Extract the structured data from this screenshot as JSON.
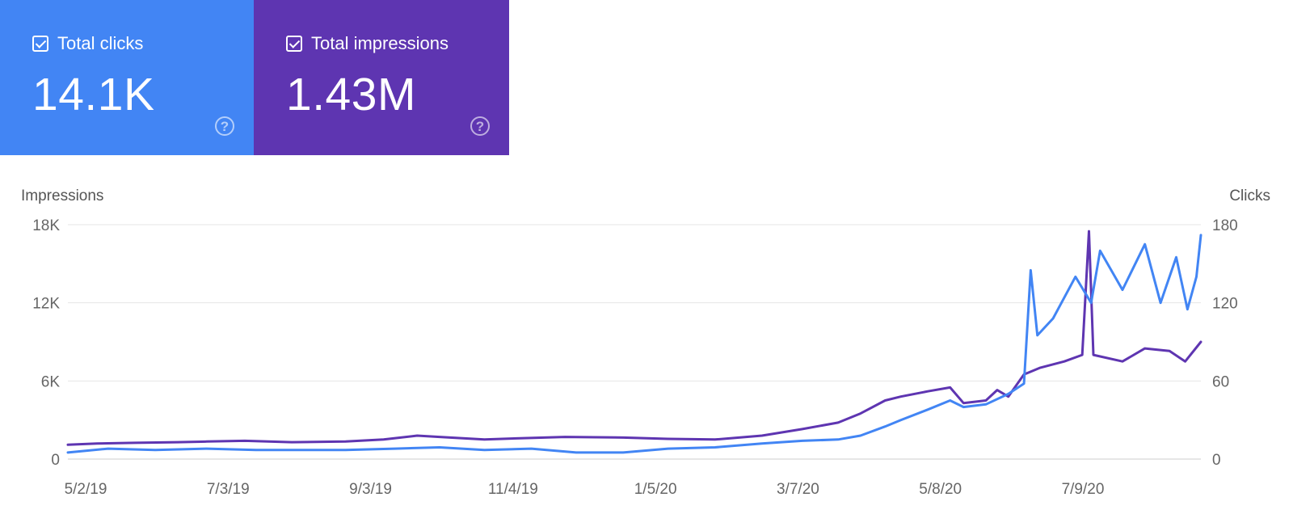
{
  "cards": [
    {
      "label": "Total clicks",
      "value": "14.1K",
      "color": "#4285F4",
      "checked": true,
      "help_icon": "help-circle-icon"
    },
    {
      "label": "Total impressions",
      "value": "1.43M",
      "color": "#5E35B1",
      "checked": true,
      "help_icon": "help-circle-icon"
    }
  ],
  "chart_data": {
    "type": "line",
    "left_axis": {
      "title": "Impressions",
      "ticks": [
        "0",
        "6K",
        "12K",
        "18K"
      ],
      "range": [
        0,
        18000
      ]
    },
    "right_axis": {
      "title": "Clicks",
      "ticks": [
        "0",
        "60",
        "120",
        "180"
      ],
      "range": [
        0,
        180
      ]
    },
    "x_ticks": [
      "5/2/19",
      "7/3/19",
      "9/3/19",
      "11/4/19",
      "1/5/20",
      "3/7/20",
      "5/8/20",
      "7/9/20"
    ],
    "x_range": [
      "2019-05-02",
      "2020-09-19"
    ],
    "grid": true,
    "legend": "none",
    "series": [
      {
        "name": "Total impressions",
        "axis": "left",
        "color": "#5E35B1",
        "points": [
          [
            "2019-05-02",
            1100
          ],
          [
            "2019-05-15",
            1200
          ],
          [
            "2019-06-01",
            1250
          ],
          [
            "2019-06-20",
            1300
          ],
          [
            "2019-07-03",
            1350
          ],
          [
            "2019-07-20",
            1400
          ],
          [
            "2019-08-10",
            1300
          ],
          [
            "2019-09-03",
            1350
          ],
          [
            "2019-09-20",
            1500
          ],
          [
            "2019-10-05",
            1800
          ],
          [
            "2019-10-15",
            1700
          ],
          [
            "2019-11-04",
            1500
          ],
          [
            "2019-11-20",
            1600
          ],
          [
            "2019-12-10",
            1700
          ],
          [
            "2020-01-05",
            1650
          ],
          [
            "2020-01-25",
            1550
          ],
          [
            "2020-02-15",
            1500
          ],
          [
            "2020-03-07",
            1800
          ],
          [
            "2020-03-25",
            2300
          ],
          [
            "2020-04-10",
            2800
          ],
          [
            "2020-04-20",
            3500
          ],
          [
            "2020-05-01",
            4500
          ],
          [
            "2020-05-08",
            4800
          ],
          [
            "2020-05-20",
            5200
          ],
          [
            "2020-05-30",
            5500
          ],
          [
            "2020-06-05",
            4300
          ],
          [
            "2020-06-15",
            4500
          ],
          [
            "2020-06-20",
            5300
          ],
          [
            "2020-06-25",
            4800
          ],
          [
            "2020-07-02",
            6500
          ],
          [
            "2020-07-09",
            7000
          ],
          [
            "2020-07-20",
            7500
          ],
          [
            "2020-07-28",
            8000
          ],
          [
            "2020-07-31",
            17500
          ],
          [
            "2020-08-02",
            8000
          ],
          [
            "2020-08-15",
            7500
          ],
          [
            "2020-08-25",
            8500
          ],
          [
            "2020-09-05",
            8300
          ],
          [
            "2020-09-12",
            7500
          ],
          [
            "2020-09-19",
            9000
          ]
        ]
      },
      {
        "name": "Total clicks",
        "axis": "right",
        "color": "#4285F4",
        "points": [
          [
            "2019-05-02",
            5
          ],
          [
            "2019-05-20",
            8
          ],
          [
            "2019-06-10",
            7
          ],
          [
            "2019-07-03",
            8
          ],
          [
            "2019-07-25",
            7
          ],
          [
            "2019-08-15",
            7
          ],
          [
            "2019-09-03",
            7
          ],
          [
            "2019-09-25",
            8
          ],
          [
            "2019-10-15",
            9
          ],
          [
            "2019-11-04",
            7
          ],
          [
            "2019-11-25",
            8
          ],
          [
            "2019-12-15",
            5
          ],
          [
            "2020-01-05",
            5
          ],
          [
            "2020-01-25",
            8
          ],
          [
            "2020-02-15",
            9
          ],
          [
            "2020-03-07",
            12
          ],
          [
            "2020-03-25",
            14
          ],
          [
            "2020-04-10",
            15
          ],
          [
            "2020-04-20",
            18
          ],
          [
            "2020-05-01",
            25
          ],
          [
            "2020-05-08",
            30
          ],
          [
            "2020-05-20",
            38
          ],
          [
            "2020-05-30",
            45
          ],
          [
            "2020-06-05",
            40
          ],
          [
            "2020-06-15",
            42
          ],
          [
            "2020-06-25",
            50
          ],
          [
            "2020-07-02",
            58
          ],
          [
            "2020-07-05",
            145
          ],
          [
            "2020-07-08",
            95
          ],
          [
            "2020-07-15",
            108
          ],
          [
            "2020-07-25",
            140
          ],
          [
            "2020-08-01",
            120
          ],
          [
            "2020-08-05",
            160
          ],
          [
            "2020-08-15",
            130
          ],
          [
            "2020-08-25",
            165
          ],
          [
            "2020-09-01",
            120
          ],
          [
            "2020-09-08",
            155
          ],
          [
            "2020-09-13",
            115
          ],
          [
            "2020-09-17",
            140
          ],
          [
            "2020-09-19",
            172
          ]
        ]
      }
    ]
  }
}
